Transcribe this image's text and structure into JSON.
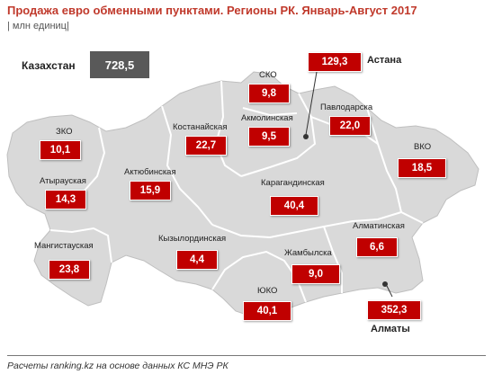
{
  "title": "Продажа евро обменными пунктами. Регионы РК. Январь-Август 2017",
  "unit": "| млн единиц|",
  "total": {
    "label": "Казахстан",
    "value": "728,5"
  },
  "regions": [
    {
      "id": "sko",
      "label": "СКО",
      "value": "9,8"
    },
    {
      "id": "astana",
      "label": "Астана",
      "value": "129,3"
    },
    {
      "id": "akmola",
      "label": "Акмолинская",
      "value": "9,5"
    },
    {
      "id": "kostanay",
      "label": "Костанайская",
      "value": "22,7"
    },
    {
      "id": "pavlodar",
      "label": "Павлодарска",
      "value": "22,0"
    },
    {
      "id": "zko",
      "label": "ЗКО",
      "value": "10,1"
    },
    {
      "id": "vko",
      "label": "ВКО",
      "value": "18,5"
    },
    {
      "id": "atyrau",
      "label": "Атырауская",
      "value": "14,3"
    },
    {
      "id": "aktobe",
      "label": "Актюбинская",
      "value": "15,9"
    },
    {
      "id": "karaganda",
      "label": "Карагандинская",
      "value": "40,4"
    },
    {
      "id": "almaty-reg",
      "label": "Алматинская",
      "value": "6,6"
    },
    {
      "id": "kyzylorda",
      "label": "Кызылординская",
      "value": "4,4"
    },
    {
      "id": "mangistau",
      "label": "Мангистауская",
      "value": "23,8"
    },
    {
      "id": "zhambyl",
      "label": "Жамбылска",
      "value": "9,0"
    },
    {
      "id": "yuko",
      "label": "ЮКО",
      "value": "40,1"
    },
    {
      "id": "almaty",
      "label": "Алматы",
      "value": "352,3"
    }
  ],
  "source": "Расчеты ranking.kz на основе данных КС МНЭ РК",
  "colors": {
    "map_fill": "#d9d9d9",
    "border": "#ffffff",
    "value_box": "#c00000",
    "total_box": "#595959",
    "title": "#c0392b"
  }
}
